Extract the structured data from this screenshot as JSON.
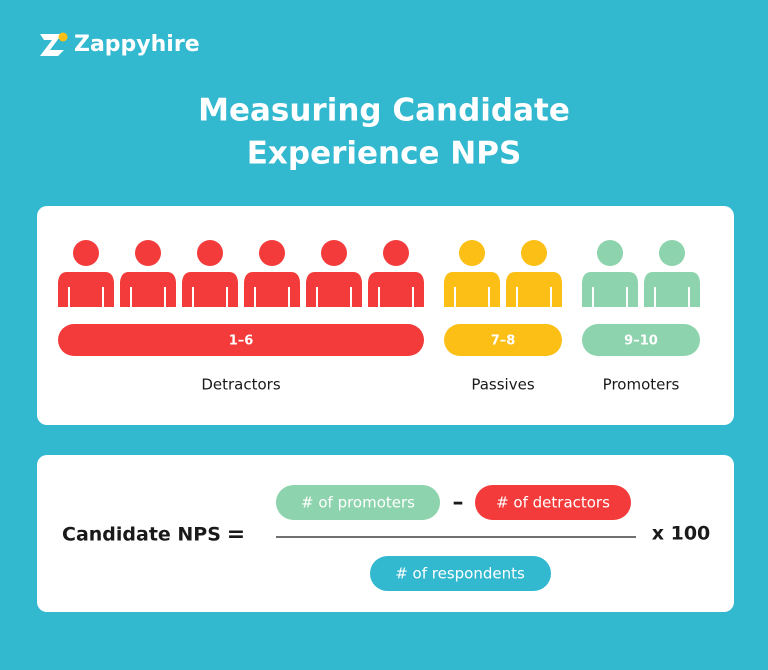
{
  "brand": "Zappyhire",
  "title": [
    "Measuring Candidate",
    "Experience NPS"
  ],
  "groups": [
    {
      "range": "1–6",
      "label": "Detractors",
      "people": 6,
      "color": "#f43b3b"
    },
    {
      "range": "7–8",
      "label": "Passives",
      "people": 2,
      "color": "#fbbf16"
    },
    {
      "range": "9–10",
      "label": "Promoters",
      "people": 2,
      "color": "#8dd3ad"
    }
  ],
  "formula": {
    "label": "Candidate NPS",
    "equals": "=",
    "numerator": [
      "# of promoters",
      "–",
      "# of detractors"
    ],
    "denominator": "# of respondents",
    "multiplier": "x 100"
  }
}
